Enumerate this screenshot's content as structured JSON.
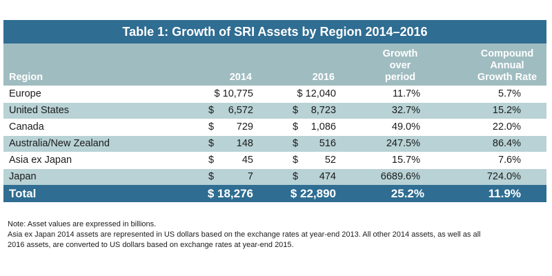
{
  "title": "Table 1: Growth of SRI Assets by Region 2014–2016",
  "headers": {
    "region": "Region",
    "y2014": "2014",
    "y2016": "2016",
    "growth": [
      "Growth",
      "over",
      "period"
    ],
    "cagr": [
      "Compound",
      "Annual",
      "Growth Rate"
    ]
  },
  "rows": [
    {
      "region": "Europe",
      "v2014": "$ 10,775",
      "v2016": "$ 12,040",
      "growth": "11.7%",
      "cagr": "5.7%",
      "dollar_sep": false
    },
    {
      "region": "United States",
      "v2014": "6,572",
      "v2016": "8,723",
      "growth": "32.7%",
      "cagr": "15.2%",
      "dollar_sep": true
    },
    {
      "region": "Canada",
      "v2014": "729",
      "v2016": "1,086",
      "growth": "49.0%",
      "cagr": "22.0%",
      "dollar_sep": true
    },
    {
      "region": "Australia/New Zealand",
      "v2014": "148",
      "v2016": "516",
      "growth": "247.5%",
      "cagr": "86.4%",
      "dollar_sep": true
    },
    {
      "region": "Asia ex Japan",
      "v2014": "45",
      "v2016": "52",
      "growth": "15.7%",
      "cagr": "7.6%",
      "dollar_sep": true
    },
    {
      "region": "Japan",
      "v2014": "7",
      "v2016": "474",
      "growth": "6689.6%",
      "cagr": "724.0%",
      "dollar_sep": true
    }
  ],
  "dollar": "$",
  "total": {
    "label": "Total",
    "v2014": "$ 18,276",
    "v2016": "$ 22,890",
    "growth": "25.2%",
    "cagr": "11.9%"
  },
  "notes": [
    "Note: Asset values are expressed in billions.",
    "Asia ex Japan 2014 assets are represented in US dollars based on the exchange rates at year-end 2013.  All other 2014 assets, as well as all",
    "2016 assets, are converted to US dollars based on exchange rates at year-end 2015."
  ]
}
